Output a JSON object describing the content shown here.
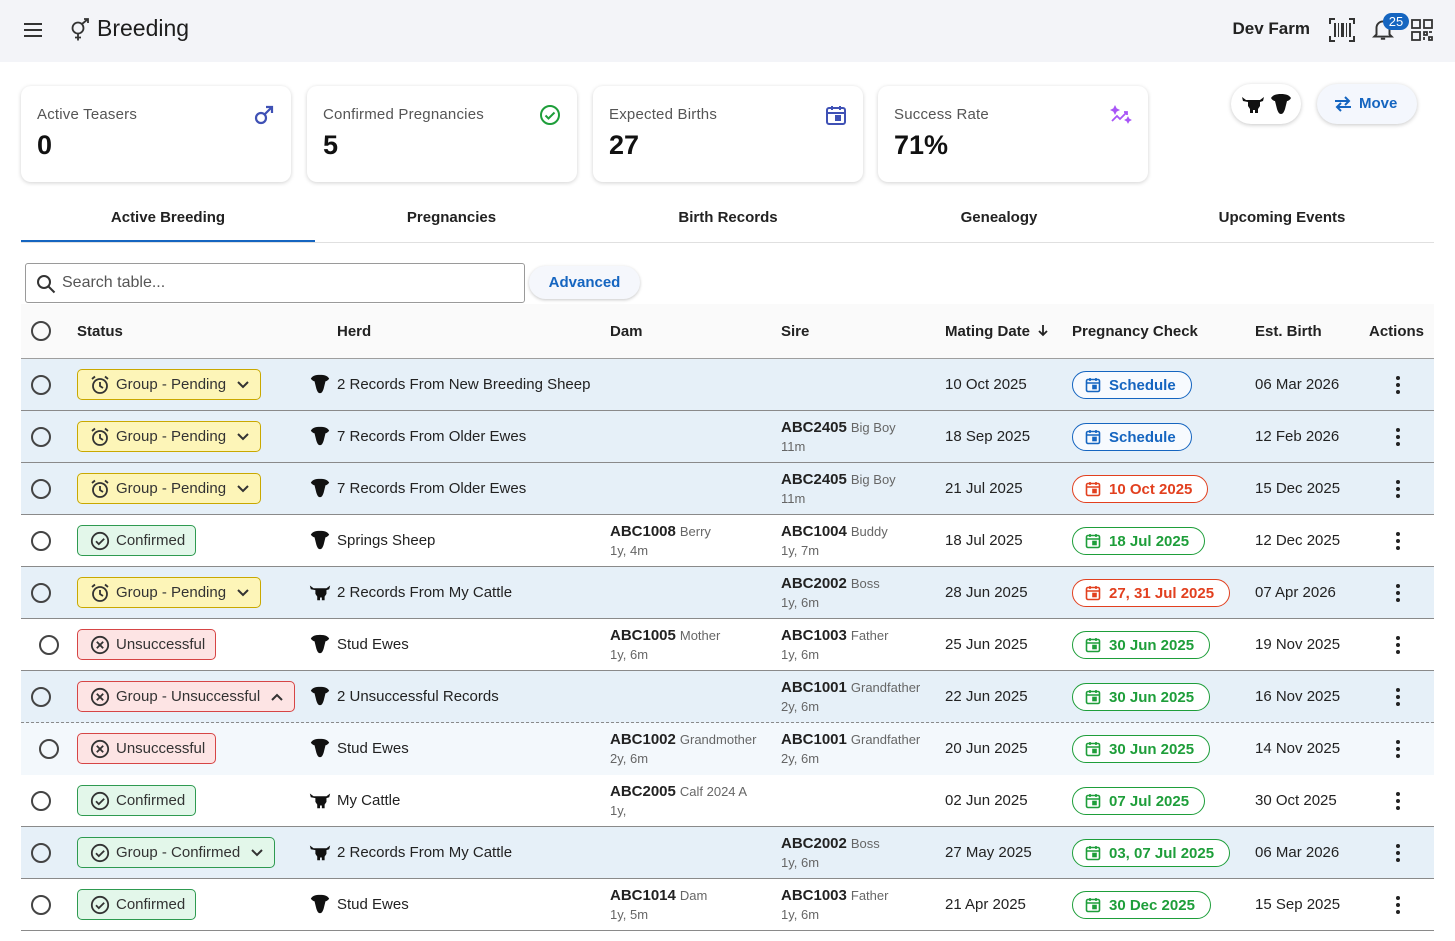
{
  "app": {
    "title": "Breeding",
    "farm_name": "Dev Farm",
    "notification_count": "25"
  },
  "kpis": [
    {
      "label": "Active Teasers",
      "value": "0",
      "icon": "male-icon",
      "color": "#3f51b5"
    },
    {
      "label": "Confirmed Pregnancies",
      "value": "5",
      "icon": "check-circle-icon",
      "color": "#1e9e3a"
    },
    {
      "label": "Expected Births",
      "value": "27",
      "icon": "calendar-icon",
      "color": "#3f51b5"
    },
    {
      "label": "Success Rate",
      "value": "71%",
      "icon": "sparkle-trend-icon",
      "color": "#a855f7"
    }
  ],
  "actions": {
    "move_label": "Move"
  },
  "tabs": [
    "Active Breeding",
    "Pregnancies",
    "Birth Records",
    "Genealogy",
    "Upcoming Events"
  ],
  "search": {
    "placeholder": "Search table...",
    "advanced_label": "Advanced"
  },
  "columns": [
    "Status",
    "Herd",
    "Dam",
    "Sire",
    "Mating Date",
    "Pregnancy Check",
    "Est. Birth",
    "Actions"
  ],
  "rows": [
    {
      "status": "Group - Pending",
      "kind": "pending",
      "icon": "alarm-icon",
      "caret": "down",
      "herd": "2 Records From New Breeding Sheep",
      "animal": "sheep",
      "dam": null,
      "sire": null,
      "mating": "10 Oct 2025",
      "check": "Schedule",
      "check_color": "blue",
      "birth": "06 Mar 2026",
      "bg": "alt"
    },
    {
      "status": "Group - Pending",
      "kind": "pending",
      "icon": "alarm-icon",
      "caret": "down",
      "herd": "7 Records From Older Ewes",
      "animal": "sheep",
      "dam": null,
      "sire": {
        "tag": "ABC2405",
        "name": "Big Boy",
        "age": "11m"
      },
      "mating": "18 Sep 2025",
      "check": "Schedule",
      "check_color": "blue",
      "birth": "12 Feb 2026",
      "bg": "alt"
    },
    {
      "status": "Group - Pending",
      "kind": "pending",
      "icon": "alarm-icon",
      "caret": "down",
      "herd": "7 Records From Older Ewes",
      "animal": "sheep",
      "dam": null,
      "sire": {
        "tag": "ABC2405",
        "name": "Big Boy",
        "age": "11m"
      },
      "mating": "21 Jul 2025",
      "check": "10 Oct 2025",
      "check_color": "red",
      "birth": "15 Dec 2025",
      "bg": "alt"
    },
    {
      "status": "Confirmed",
      "kind": "confirmed",
      "icon": "check-circle-icon",
      "caret": null,
      "herd": "Springs Sheep",
      "animal": "sheep",
      "dam": {
        "tag": "ABC1008",
        "name": "Berry",
        "age": "1y, 4m"
      },
      "sire": {
        "tag": "ABC1004",
        "name": "Buddy",
        "age": "1y, 7m"
      },
      "mating": "18 Jul 2025",
      "check": "18 Jul 2025",
      "check_color": "green",
      "birth": "12 Dec 2025",
      "bg": "white"
    },
    {
      "status": "Group - Pending",
      "kind": "pending",
      "icon": "alarm-icon",
      "caret": "down",
      "herd": "2 Records From My Cattle",
      "animal": "cattle",
      "dam": null,
      "sire": {
        "tag": "ABC2002",
        "name": "Boss",
        "age": "1y, 6m"
      },
      "mating": "28 Jun 2025",
      "check": "27, 31 Jul 2025",
      "check_color": "red",
      "birth": "07 Apr 2026",
      "bg": "alt"
    },
    {
      "status": "Unsuccessful",
      "kind": "fail",
      "icon": "cancel-circle-icon",
      "caret": null,
      "herd": "Stud Ewes",
      "animal": "sheep",
      "indent": true,
      "dam": {
        "tag": "ABC1005",
        "name": "Mother",
        "age": "1y, 6m"
      },
      "sire": {
        "tag": "ABC1003",
        "name": "Father",
        "age": "1y, 6m"
      },
      "mating": "25 Jun 2025",
      "check": "30 Jun 2025",
      "check_color": "green",
      "birth": "19 Nov 2025",
      "bg": "white"
    },
    {
      "status": "Group - Unsuccessful",
      "kind": "fail",
      "icon": "cancel-circle-icon",
      "caret": "up",
      "herd": "2 Unsuccessful Records",
      "animal": "sheep",
      "dam": null,
      "sire": {
        "tag": "ABC1001",
        "name": "Grandfather",
        "age": "2y, 6m"
      },
      "mating": "22 Jun 2025",
      "check": "30 Jun 2025",
      "check_color": "green",
      "birth": "16 Nov 2025",
      "bg": "alt",
      "dash": true
    },
    {
      "status": "Unsuccessful",
      "kind": "fail",
      "icon": "cancel-circle-icon",
      "caret": null,
      "herd": "Stud Ewes",
      "animal": "sheep",
      "indent": true,
      "dam": {
        "tag": "ABC1002",
        "name": "Grandmother",
        "age": "2y, 6m"
      },
      "sire": {
        "tag": "ABC1001",
        "name": "Grandfather",
        "age": "2y, 6m"
      },
      "mating": "20 Jun 2025",
      "check": "30 Jun 2025",
      "check_color": "green",
      "birth": "14 Nov 2025",
      "bg": "subrow"
    },
    {
      "status": "Confirmed",
      "kind": "confirmed",
      "icon": "check-circle-icon",
      "caret": null,
      "herd": "My Cattle",
      "animal": "cattle",
      "dam": {
        "tag": "ABC2005",
        "name": "Calf 2024 A",
        "age": "1y,"
      },
      "sire": null,
      "mating": "02 Jun 2025",
      "check": "07 Jul 2025",
      "check_color": "green",
      "birth": "30 Oct 2025",
      "bg": "white"
    },
    {
      "status": "Group - Confirmed",
      "kind": "confirmed",
      "icon": "check-circle-icon",
      "caret": "down",
      "herd": "2 Records From My Cattle",
      "animal": "cattle",
      "dam": null,
      "sire": {
        "tag": "ABC2002",
        "name": "Boss",
        "age": "1y, 6m"
      },
      "mating": "27 May 2025",
      "check": "03, 07 Jul 2025",
      "check_color": "green",
      "birth": "06 Mar 2026",
      "bg": "alt"
    },
    {
      "status": "Confirmed",
      "kind": "confirmed",
      "icon": "check-circle-icon",
      "caret": null,
      "herd": "Stud Ewes",
      "animal": "sheep",
      "dam": {
        "tag": "ABC1014",
        "name": "Dam",
        "age": "1y, 5m"
      },
      "sire": {
        "tag": "ABC1003",
        "name": "Father",
        "age": "1y, 6m"
      },
      "mating": "21 Apr 2025",
      "check": "30 Dec 2025",
      "check_color": "green",
      "birth": "15 Sep 2025",
      "bg": "white"
    }
  ]
}
